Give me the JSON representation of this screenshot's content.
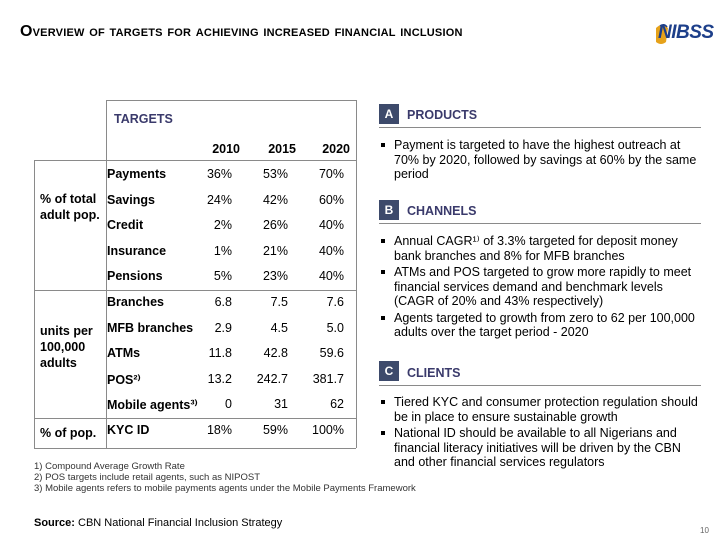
{
  "title": "Overview of targets for achieving increased financial inclusion",
  "logo": {
    "text": "NIBSS"
  },
  "table": {
    "label": "TARGETS",
    "years": [
      "2010",
      "2015",
      "2020"
    ],
    "groups": [
      {
        "label": "% of total adult pop."
      },
      {
        "label": "units per 100,000 adults"
      },
      {
        "label": "% of pop."
      }
    ],
    "rows": [
      {
        "name": "Payments",
        "values": [
          "36%",
          "53%",
          "70%"
        ]
      },
      {
        "name": "Savings",
        "values": [
          "24%",
          "42%",
          "60%"
        ]
      },
      {
        "name": "Credit",
        "values": [
          "2%",
          "26%",
          "40%"
        ]
      },
      {
        "name": "Insurance",
        "values": [
          "1%",
          "21%",
          "40%"
        ]
      },
      {
        "name": "Pensions",
        "values": [
          "5%",
          "23%",
          "40%"
        ]
      },
      {
        "name": "Branches",
        "values": [
          "6.8",
          "7.5",
          "7.6"
        ]
      },
      {
        "name": "MFB branches",
        "values": [
          "2.9",
          "4.5",
          "5.0"
        ]
      },
      {
        "name": "ATMs",
        "values": [
          "11.8",
          "42.8",
          "59.6"
        ]
      },
      {
        "name": "POS²⁾",
        "values": [
          "13.2",
          "242.7",
          "381.7"
        ]
      },
      {
        "name": "Mobile agents³⁾",
        "values": [
          "0",
          "31",
          "62"
        ]
      },
      {
        "name": "KYC ID",
        "values": [
          "18%",
          "59%",
          "100%"
        ]
      }
    ]
  },
  "footnotes": [
    "1) Compound Average Growth Rate",
    "2) POS targets include retail agents, such as NIPOST",
    "3) Mobile agents refers to mobile payments agents under the Mobile Payments Framework"
  ],
  "source": {
    "label": "Source:",
    "text": "CBN National Financial Inclusion Strategy"
  },
  "page_number": "10",
  "sections": [
    {
      "letter": "A",
      "title": "PRODUCTS",
      "bullets": [
        "Payment is targeted to have the highest outreach at 70% by 2020, followed by savings at 60% by the same period"
      ]
    },
    {
      "letter": "B",
      "title": "CHANNELS",
      "bullets": [
        "Annual CAGR¹⁾ of 3.3% targeted for deposit money bank branches and 8% for MFB branches",
        "ATMs and POS targeted to grow more rapidly to meet financial services demand and benchmark levels (CAGR of 20% and 43% respectively)",
        "Agents targeted to growth from zero to 62 per 100,000 adults over the target period - 2020"
      ]
    },
    {
      "letter": "C",
      "title": "CLIENTS",
      "bullets": [
        "Tiered KYC and consumer protection regulation should be in place to ensure sustainable growth",
        "National ID should be available to all Nigerians and financial literacy initiatives will be driven by the CBN and other financial services regulators"
      ]
    }
  ]
}
